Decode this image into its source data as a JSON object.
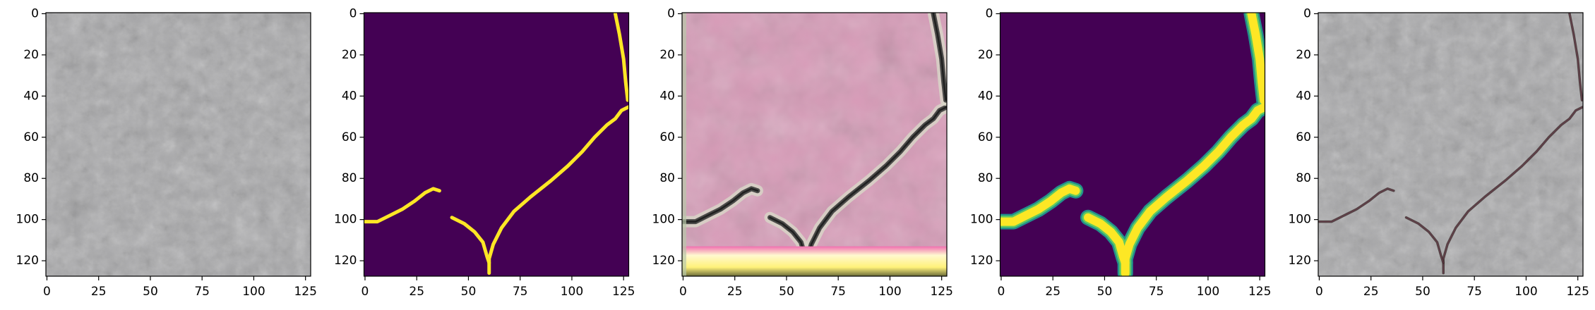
{
  "chart_data": [
    {
      "type": "image",
      "xlim": [
        -0.5,
        127.5
      ],
      "ylim": [
        127.5,
        -0.5
      ],
      "xticks": [
        0,
        25,
        50,
        75,
        100,
        125
      ],
      "yticks": [
        0,
        20,
        40,
        60,
        80,
        100,
        120
      ]
    },
    {
      "type": "image",
      "xlim": [
        -0.5,
        127.5
      ],
      "ylim": [
        127.5,
        -0.5
      ],
      "xticks": [
        0,
        25,
        50,
        75,
        100,
        125
      ],
      "yticks": [
        0,
        20,
        40,
        60,
        80,
        100,
        120
      ]
    },
    {
      "type": "image",
      "xlim": [
        -0.5,
        127.5
      ],
      "ylim": [
        127.5,
        -0.5
      ],
      "xticks": [
        0,
        25,
        50,
        75,
        100,
        125
      ],
      "yticks": [
        0,
        20,
        40,
        60,
        80,
        100,
        120
      ]
    },
    {
      "type": "image",
      "xlim": [
        -0.5,
        127.5
      ],
      "ylim": [
        127.5,
        -0.5
      ],
      "xticks": [
        0,
        25,
        50,
        75,
        100,
        125
      ],
      "yticks": [
        0,
        20,
        40,
        60,
        80,
        100,
        120
      ]
    },
    {
      "type": "image",
      "xlim": [
        -0.5,
        127.5
      ],
      "ylim": [
        127.5,
        -0.5
      ],
      "xticks": [
        0,
        25,
        50,
        75,
        100,
        125
      ],
      "yticks": [
        0,
        20,
        40,
        60,
        80,
        100,
        120
      ]
    }
  ]
}
